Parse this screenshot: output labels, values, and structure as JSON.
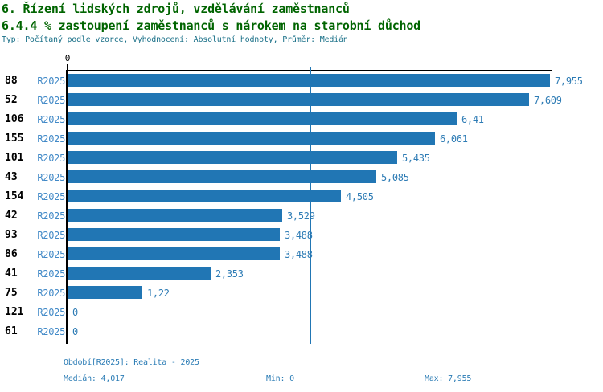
{
  "header": {
    "title_line1": "6. Řízení lidských zdrojů, vzdělávání zaměstnanců",
    "title_line2": "6.4.4 % zastoupení zaměstnanců s nárokem na starobní důchod",
    "meta_line": "Typ: Počítaný podle vzorce, Vyhodnocení: Absolutní hodnoty, Průměr: Medián"
  },
  "chart_data": {
    "type": "bar",
    "orientation": "horizontal",
    "title": "6.4.4 % zastoupení zaměstnanců s nárokem na starobní důchod",
    "xlabel": "",
    "ylabel": "",
    "x_axis": {
      "min": 0,
      "max": 7.955,
      "ticks": [
        "0"
      ],
      "grid": false
    },
    "median_value": 4.017,
    "legend_position": "none",
    "categories": [
      "88",
      "52",
      "106",
      "155",
      "101",
      "43",
      "154",
      "42",
      "93",
      "86",
      "41",
      "75",
      "121",
      "61"
    ],
    "series": [
      {
        "name": "R2025",
        "values": [
          7.955,
          7.609,
          6.41,
          6.061,
          5.435,
          5.085,
          4.505,
          3.529,
          3.488,
          3.488,
          2.353,
          1.22,
          0,
          0
        ],
        "value_labels": [
          "7,955",
          "7,609",
          "6,41",
          "6,061",
          "5,435",
          "5,085",
          "4,505",
          "3,529",
          "3,488",
          "3,488",
          "2,353",
          "1,22",
          "0",
          "0"
        ]
      }
    ]
  },
  "footer": {
    "period_line": "Období[R2025]: Realita - 2025",
    "median": "Medián: 4,017",
    "min": "Min: 0",
    "max": "Max: 7,955"
  },
  "colors": {
    "bar": "#2176B4",
    "title": "#006400",
    "meta": "#1A7088",
    "value_label": "#2E7CB5",
    "period_label": "#4189C7",
    "footer_text": "#2B7CB5",
    "axis": "#000000",
    "category": "#000000"
  }
}
